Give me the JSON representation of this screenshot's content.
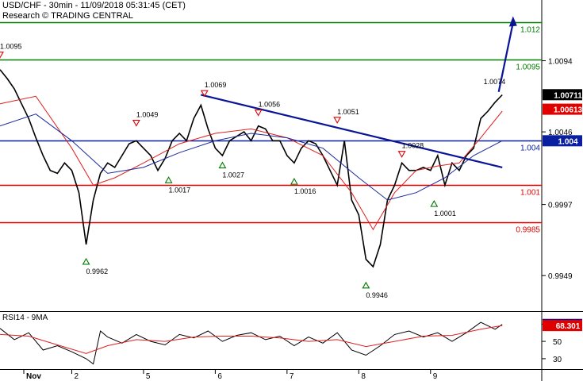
{
  "header": {
    "instrument_line": "USD/CHF - 30min - 11/09/2018 05:31:45 (CET)",
    "source_line": "Research © TRADING CENTRAL"
  },
  "colors": {
    "price": "#000000",
    "fast_ma": "#e02020",
    "slow_ma": "#1a2a9a",
    "resistance": "#008000",
    "support": "#e00000",
    "pivot": "#0a1fa0",
    "trendline": "#0a1496",
    "arrow": "#0a1496",
    "last_price_box": "#000000",
    "ma_box": "#e00000",
    "rsi_box": "#0a1496"
  },
  "chart_data": [
    {
      "type": "line",
      "name": "price-panel",
      "x_ticks": [
        "Nov",
        "2",
        "5",
        "6",
        "7",
        "8",
        "9"
      ],
      "y_ticks": [
        "1.0094",
        "1.0046",
        "0.9997",
        "0.9949"
      ],
      "ylim": [
        0.9925,
        1.0135
      ],
      "grid": false,
      "horizontal_levels": [
        {
          "label": "1.012",
          "value": 1.012,
          "color": "resistance"
        },
        {
          "label": "1.0095",
          "value": 1.0095,
          "color": "resistance"
        },
        {
          "label": "1.004",
          "value": 1.004,
          "color": "pivot"
        },
        {
          "label": "1.001",
          "value": 1.001,
          "color": "support"
        },
        {
          "label": "0.9985",
          "value": 0.9985,
          "color": "support"
        }
      ],
      "price_markers": [
        {
          "label": "1.00711",
          "value": 1.00711,
          "color": "last_price_box"
        },
        {
          "label": "1.00613",
          "value": 1.00613,
          "color": "ma_box"
        },
        {
          "label": "1.004",
          "value": 1.004,
          "color": "pivot"
        }
      ],
      "annotations": [
        {
          "label": "1.0095",
          "kind": "high",
          "x": 0.0,
          "y": 1.0095
        },
        {
          "label": "0.9962",
          "kind": "low",
          "x": 1.2,
          "y": 0.9962
        },
        {
          "label": "1.0049",
          "kind": "high",
          "x": 1.9,
          "y": 1.0049
        },
        {
          "label": "1.0017",
          "kind": "low",
          "x": 2.35,
          "y": 1.0017
        },
        {
          "label": "1.0069",
          "kind": "high",
          "x": 2.85,
          "y": 1.0069
        },
        {
          "label": "1.0027",
          "kind": "low",
          "x": 3.1,
          "y": 1.0027
        },
        {
          "label": "1.0056",
          "kind": "high",
          "x": 3.6,
          "y": 1.0056
        },
        {
          "label": "1.0016",
          "kind": "low",
          "x": 4.1,
          "y": 1.0016
        },
        {
          "label": "1.0051",
          "kind": "high",
          "x": 4.7,
          "y": 1.0051
        },
        {
          "label": "0.9946",
          "kind": "low",
          "x": 5.1,
          "y": 0.9946
        },
        {
          "label": "1.0028",
          "kind": "high",
          "x": 5.6,
          "y": 1.0028
        },
        {
          "label": "1.0001",
          "kind": "low",
          "x": 6.05,
          "y": 1.0001
        },
        {
          "label": "1.0074",
          "kind": "plain",
          "x": 6.85,
          "y": 1.0074
        }
      ],
      "trendline": {
        "x": [
          2.8,
          7.0
        ],
        "y": [
          1.0071,
          1.0022
        ]
      },
      "projection_arrow": {
        "x": [
          6.95,
          7.15
        ],
        "y": [
          1.0073,
          1.0124
        ]
      },
      "series": [
        {
          "name": "price",
          "color": "price",
          "x": [
            0.0,
            0.1,
            0.2,
            0.3,
            0.4,
            0.5,
            0.6,
            0.7,
            0.8,
            0.9,
            1.0,
            1.1,
            1.2,
            1.3,
            1.4,
            1.5,
            1.6,
            1.7,
            1.8,
            1.9,
            2.0,
            2.1,
            2.2,
            2.3,
            2.4,
            2.5,
            2.6,
            2.7,
            2.8,
            2.9,
            3.0,
            3.1,
            3.2,
            3.3,
            3.4,
            3.5,
            3.6,
            3.7,
            3.8,
            3.9,
            4.0,
            4.1,
            4.2,
            4.3,
            4.4,
            4.5,
            4.6,
            4.7,
            4.8,
            4.9,
            5.0,
            5.1,
            5.2,
            5.3,
            5.4,
            5.5,
            5.6,
            5.7,
            5.8,
            5.9,
            6.0,
            6.1,
            6.2,
            6.3,
            6.4,
            6.5,
            6.6,
            6.7,
            6.8,
            6.9,
            7.0
          ],
          "y": [
            1.0088,
            1.0082,
            1.0075,
            1.0065,
            1.0055,
            1.0042,
            1.003,
            1.002,
            1.0018,
            1.0025,
            1.002,
            1.0005,
            0.997,
            1.0,
            1.0018,
            1.0025,
            1.0022,
            1.003,
            1.0038,
            1.004,
            1.0035,
            1.003,
            1.002,
            1.0028,
            1.004,
            1.0045,
            1.004,
            1.0055,
            1.0064,
            1.0048,
            1.0035,
            1.003,
            1.004,
            1.0043,
            1.0046,
            1.004,
            1.005,
            1.0048,
            1.004,
            1.004,
            1.003,
            1.0025,
            1.0035,
            1.004,
            1.0038,
            1.003,
            1.002,
            1.001,
            1.004,
            1.0,
            0.999,
            0.996,
            0.9955,
            0.997,
            1.0,
            1.001,
            1.0025,
            1.002,
            1.002,
            1.0022,
            1.002,
            1.003,
            1.001,
            1.0025,
            1.002,
            1.003,
            1.0035,
            1.0055,
            1.006,
            1.0066,
            1.0071
          ]
        },
        {
          "name": "fast_ma",
          "color": "fast_ma",
          "x": [
            0.0,
            0.5,
            1.0,
            1.3,
            1.6,
            2.0,
            2.5,
            3.0,
            3.5,
            4.0,
            4.5,
            4.9,
            5.2,
            5.5,
            5.8,
            6.1,
            6.4,
            6.7,
            7.0
          ],
          "y": [
            1.0065,
            1.007,
            1.0035,
            1.001,
            1.0015,
            1.0025,
            1.0038,
            1.0045,
            1.0048,
            1.0042,
            1.003,
            1.0005,
            0.998,
            1.0005,
            1.002,
            1.0023,
            1.0025,
            1.0042,
            1.006
          ]
        },
        {
          "name": "slow_ma",
          "color": "slow_ma",
          "x": [
            0.0,
            0.5,
            1.0,
            1.5,
            2.0,
            2.5,
            3.0,
            3.5,
            4.0,
            4.5,
            5.0,
            5.4,
            5.8,
            6.2,
            6.6,
            7.0
          ],
          "y": [
            1.005,
            1.0058,
            1.004,
            1.0018,
            1.0022,
            1.0032,
            1.004,
            1.0045,
            1.0042,
            1.0035,
            1.0015,
            1.0,
            1.0005,
            1.0015,
            1.003,
            1.004
          ]
        }
      ],
      "xlim": [
        0.0,
        7.55
      ]
    },
    {
      "type": "line",
      "name": "rsi-panel",
      "title": "RSI14 - 9MA",
      "y_ticks": [
        "70",
        "50",
        "30"
      ],
      "ylim": [
        18,
        84
      ],
      "xlim": [
        0.0,
        7.55
      ],
      "price_markers": [
        {
          "label": "69.5717",
          "value": 69.5717,
          "color": "rsi_box"
        },
        {
          "label": "68.301",
          "value": 68.301,
          "color": "ma_box"
        }
      ],
      "series": [
        {
          "name": "RSI14",
          "color": "price",
          "x": [
            0.0,
            0.2,
            0.4,
            0.6,
            0.8,
            1.0,
            1.2,
            1.3,
            1.4,
            1.5,
            1.7,
            1.9,
            2.1,
            2.3,
            2.5,
            2.7,
            2.9,
            3.1,
            3.3,
            3.5,
            3.7,
            3.9,
            4.1,
            4.3,
            4.5,
            4.7,
            4.9,
            5.1,
            5.3,
            5.5,
            5.7,
            5.9,
            6.1,
            6.3,
            6.5,
            6.7,
            6.9,
            7.0
          ],
          "y": [
            65,
            52,
            60,
            40,
            45,
            38,
            30,
            24,
            62,
            55,
            48,
            58,
            50,
            46,
            58,
            54,
            62,
            50,
            57,
            60,
            52,
            56,
            45,
            55,
            48,
            60,
            40,
            34,
            45,
            58,
            62,
            55,
            60,
            50,
            60,
            72,
            64,
            69.57
          ]
        },
        {
          "name": "9MA",
          "color": "fast_ma",
          "x": [
            0.0,
            0.4,
            0.8,
            1.2,
            1.5,
            1.9,
            2.3,
            2.7,
            3.1,
            3.5,
            3.9,
            4.3,
            4.7,
            5.1,
            5.5,
            5.9,
            6.3,
            6.7,
            7.0
          ],
          "y": [
            58,
            56,
            46,
            36,
            45,
            52,
            50,
            55,
            56,
            56,
            54,
            50,
            52,
            44,
            50,
            56,
            57,
            64,
            68.3
          ]
        }
      ]
    }
  ]
}
